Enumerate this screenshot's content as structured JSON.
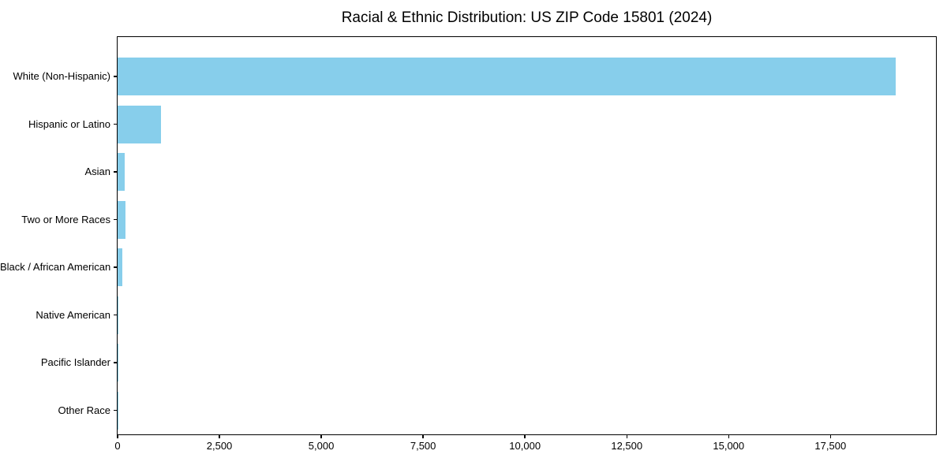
{
  "chart_data": {
    "type": "bar",
    "orientation": "horizontal",
    "title": "Racial & Ethnic Distribution: US ZIP Code 15801 (2024)",
    "categories": [
      "White (Non-Hispanic)",
      "Hispanic or Latino",
      "Asian",
      "Two or More Races",
      "Black / African American",
      "Native American",
      "Pacific Islander",
      "Other Race"
    ],
    "values": [
      19100,
      1060,
      180,
      190,
      115,
      10,
      5,
      3
    ],
    "xlabel": "",
    "ylabel": "",
    "xlim": [
      0,
      20090
    ],
    "x_ticks": [
      0,
      2500,
      5000,
      7500,
      10000,
      12500,
      15000,
      17500
    ],
    "grid": false,
    "legend": null,
    "bar_color": "#87CEEB",
    "axis_color": "#000000",
    "text_color": "#000000",
    "background_color": "#FFFFFF"
  }
}
